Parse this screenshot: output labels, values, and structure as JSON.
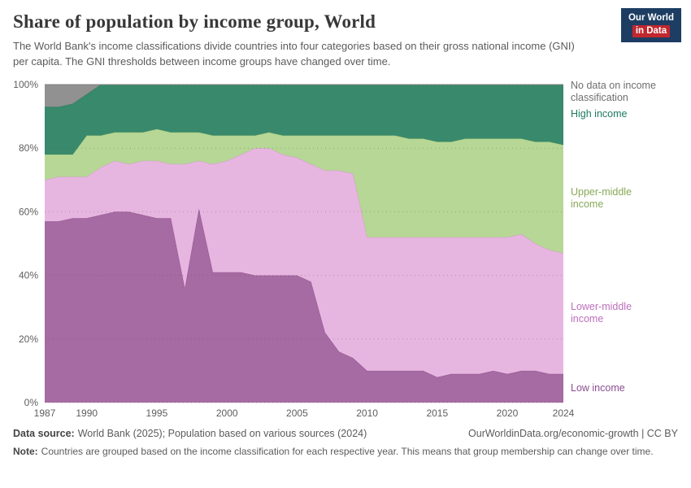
{
  "header": {
    "title": "Share of population by income group, World",
    "subtitle": "The World Bank's income classifications divide countries into four categories based on their gross national income (GNI) per capita. The GNI thresholds between income groups have changed over time.",
    "logo": {
      "line1": "Our World",
      "line2": "in Data"
    }
  },
  "chart_data": {
    "type": "area",
    "stacked": true,
    "title": "Share of population by income group, World",
    "ylim": [
      0,
      100
    ],
    "grid": "dotted-horizontal",
    "legend_position": "right",
    "x": [
      1987,
      1988,
      1989,
      1990,
      1991,
      1992,
      1993,
      1994,
      1995,
      1996,
      1997,
      1998,
      1999,
      2000,
      2001,
      2002,
      2003,
      2004,
      2005,
      2006,
      2007,
      2008,
      2009,
      2010,
      2011,
      2012,
      2013,
      2014,
      2015,
      2016,
      2017,
      2018,
      2019,
      2020,
      2021,
      2022,
      2023,
      2024
    ],
    "xticks": [
      1987,
      1990,
      1995,
      2000,
      2005,
      2010,
      2015,
      2020,
      2024
    ],
    "yticks": [
      {
        "v": 0,
        "label": "0%"
      },
      {
        "v": 20,
        "label": "20%"
      },
      {
        "v": 40,
        "label": "40%"
      },
      {
        "v": 60,
        "label": "60%"
      },
      {
        "v": 80,
        "label": "80%"
      },
      {
        "v": 100,
        "label": "100%"
      }
    ],
    "series": [
      {
        "id": "low-income",
        "name": "Low income",
        "color": "#a56ba2",
        "stroke": "#8f5390",
        "label_color": "#8b4d92",
        "values": [
          57,
          57,
          58,
          58,
          59,
          60,
          60,
          59,
          58,
          58,
          36,
          61,
          41,
          41,
          41,
          40,
          40,
          40,
          40,
          38,
          22,
          16,
          14,
          10,
          10,
          10,
          10,
          10,
          8,
          9,
          9,
          9,
          10,
          9,
          10,
          10,
          9,
          9
        ]
      },
      {
        "id": "lower-middle-income",
        "name": "Lower-middle income",
        "color": "#e7b6e0",
        "stroke": "#d49cce",
        "label_color": "#bd6fbc",
        "values": [
          13,
          14,
          13,
          13,
          15,
          16,
          15,
          17,
          18,
          17,
          39,
          15,
          34,
          35,
          37,
          40,
          40,
          38,
          37,
          37,
          51,
          57,
          58,
          42,
          42,
          42,
          42,
          42,
          44,
          43,
          43,
          43,
          42,
          43,
          43,
          40,
          39,
          38
        ]
      },
      {
        "id": "upper-middle-income",
        "name": "Upper-middle income",
        "color": "#b6d795",
        "stroke": "#9fc47a",
        "label_color": "#88a958",
        "values": [
          8,
          7,
          7,
          13,
          10,
          9,
          10,
          9,
          10,
          10,
          10,
          9,
          9,
          8,
          6,
          4,
          5,
          6,
          7,
          9,
          11,
          11,
          12,
          32,
          32,
          32,
          31,
          31,
          30,
          30,
          31,
          31,
          31,
          31,
          30,
          32,
          34,
          34
        ]
      },
      {
        "id": "high-income",
        "name": "High income",
        "color": "#39896c",
        "stroke": "#2a7a5c",
        "label_color": "#1d7a5f",
        "values": [
          15,
          15,
          16,
          13,
          16,
          15,
          15,
          15,
          14,
          15,
          15,
          15,
          16,
          16,
          16,
          16,
          15,
          16,
          16,
          16,
          16,
          16,
          16,
          16,
          16,
          16,
          17,
          17,
          18,
          18,
          17,
          17,
          17,
          17,
          17,
          18,
          18,
          19
        ]
      },
      {
        "id": "no-data",
        "name": "No data on income classification",
        "color": "#919191",
        "stroke": "#828282",
        "label_color": "#6e6e6e",
        "values": [
          7,
          7,
          6,
          3,
          0,
          0,
          0,
          0,
          0,
          0,
          0,
          0,
          0,
          0,
          0,
          0,
          0,
          0,
          0,
          0,
          0,
          0,
          0,
          0,
          0,
          0,
          0,
          0,
          0,
          0,
          0,
          0,
          0,
          0,
          0,
          0,
          0,
          0
        ]
      }
    ]
  },
  "footer": {
    "source_label": "Data source:",
    "source_text": "World Bank (2025); Population based on various sources (2024)",
    "credit": "OurWorldinData.org/economic-growth | CC BY",
    "note_label": "Note:",
    "note_text": "Countries are grouped based on the income classification for each respective year. This means that group membership can change over time."
  }
}
